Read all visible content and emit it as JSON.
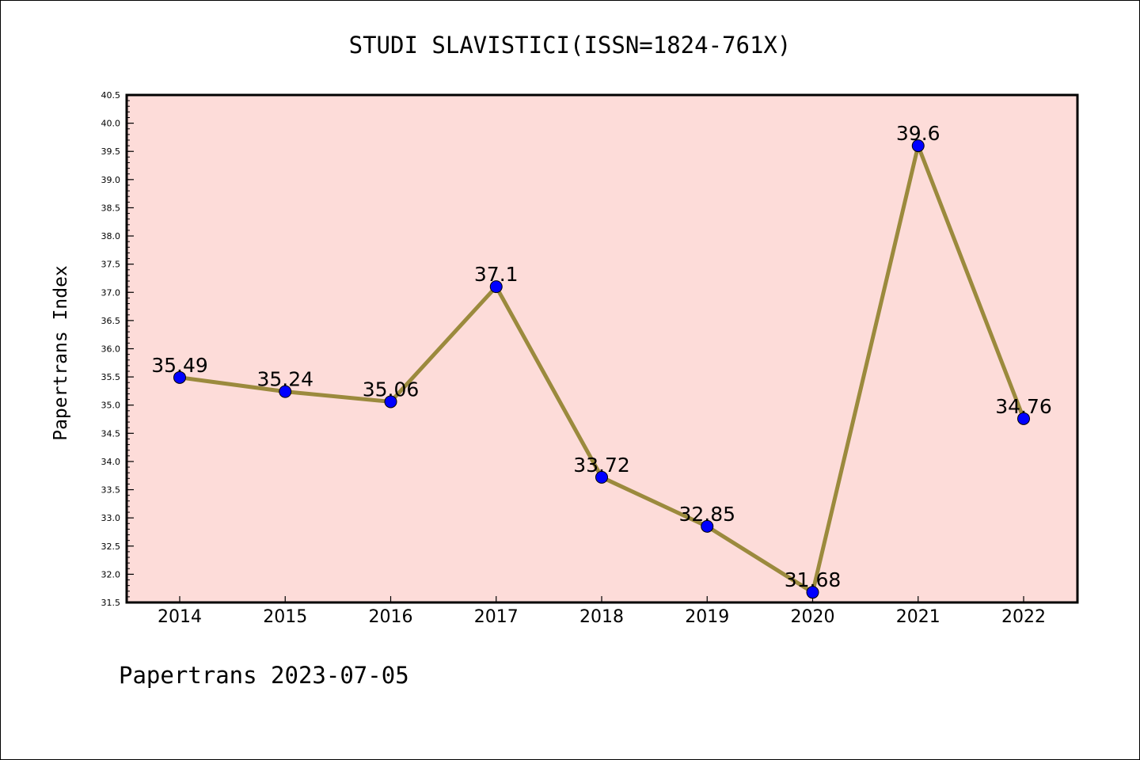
{
  "chart_data": {
    "type": "line",
    "title": "STUDI SLAVISTICI(ISSN=1824-761X)",
    "ylabel": "Papertrans Index",
    "xlabel": "",
    "footer": "Papertrans 2023-07-05",
    "categories": [
      "2014",
      "2015",
      "2016",
      "2017",
      "2018",
      "2019",
      "2020",
      "2021",
      "2022"
    ],
    "values": [
      35.49,
      35.24,
      35.06,
      37.1,
      33.72,
      32.85,
      31.68,
      39.6,
      34.76
    ],
    "data_labels": [
      "35.49",
      "35.24",
      "35.06",
      "37.1",
      "33.72",
      "32.85",
      "31.68",
      "39.6",
      "34.76"
    ],
    "ylim": [
      31.5,
      40.5
    ],
    "yticks": [
      "31.5",
      "32.0",
      "32.5",
      "33.0",
      "33.5",
      "34.0",
      "34.5",
      "35.0",
      "35.5",
      "36.0",
      "36.5",
      "37.0",
      "37.5",
      "38.0",
      "38.5",
      "39.0",
      "39.5",
      "40.0",
      "40.5"
    ],
    "grid": false,
    "colors": {
      "plot_background": "#fddcd9",
      "line": "#9b8a3d",
      "marker": "#0000ff"
    }
  }
}
